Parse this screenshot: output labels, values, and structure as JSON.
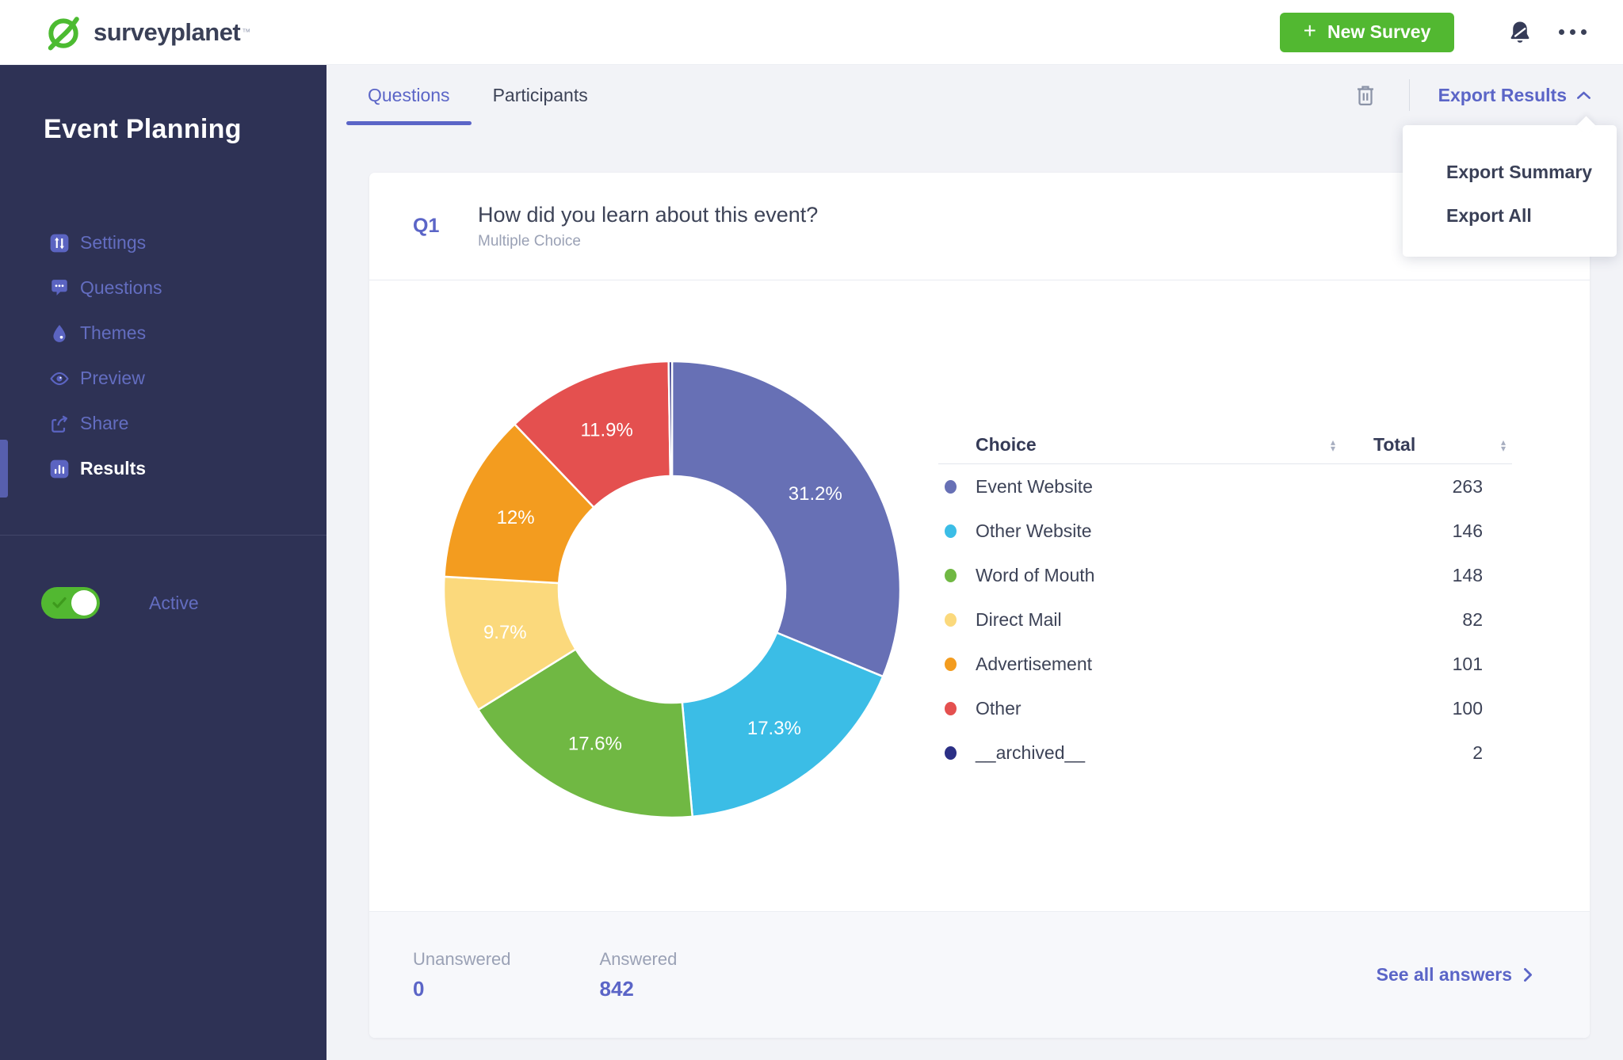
{
  "topbar": {
    "brand": "surveyplanet",
    "trademark": "™",
    "new_survey_label": "New Survey",
    "new_survey_plus": "+"
  },
  "sidebar": {
    "title": "Event Planning",
    "items": [
      {
        "label": "Settings",
        "icon": "sliders-icon",
        "active": false
      },
      {
        "label": "Questions",
        "icon": "chat-icon",
        "active": false
      },
      {
        "label": "Themes",
        "icon": "droplet-icon",
        "active": false
      },
      {
        "label": "Preview",
        "icon": "eye-icon",
        "active": false
      },
      {
        "label": "Share",
        "icon": "share-icon",
        "active": false
      },
      {
        "label": "Results",
        "icon": "bar-chart-icon",
        "active": true
      }
    ],
    "toggle_label": "Active",
    "toggle_on": true
  },
  "tabs": [
    {
      "label": "Questions",
      "active": true
    },
    {
      "label": "Participants",
      "active": false
    }
  ],
  "export": {
    "button_label": "Export Results",
    "menu_items": [
      {
        "label": "Export Summary"
      },
      {
        "label": "Export All"
      }
    ]
  },
  "question": {
    "number": "Q1",
    "title": "How did you learn about this event?",
    "type": "Multiple Choice"
  },
  "chart_data": {
    "type": "pie",
    "donut": true,
    "title": "How did you learn about this event?",
    "categories": [
      "Event Website",
      "Other Website",
      "Word of Mouth",
      "Direct Mail",
      "Advertisement",
      "Other",
      "__archived__"
    ],
    "values": [
      263,
      146,
      148,
      82,
      101,
      100,
      2
    ],
    "percent_labels": [
      "31.2%",
      "17.3%",
      "17.6%",
      "9.7%",
      "12%",
      "11.9%",
      ""
    ],
    "colors": [
      "#6770b5",
      "#3bbde6",
      "#70b843",
      "#fbd97c",
      "#f39c1f",
      "#e4504f",
      "#2b2f85"
    ],
    "start_angle_deg": 0,
    "direction": "clockwise",
    "inner_radius_ratio": 0.497,
    "total": 842,
    "legend_position": "right-table"
  },
  "table": {
    "columns": [
      "Choice",
      "Total"
    ],
    "rows": [
      {
        "label": "Event Website",
        "value": "263",
        "color": "#6770b5"
      },
      {
        "label": "Other Website",
        "value": "146",
        "color": "#3bbde6"
      },
      {
        "label": "Word of Mouth",
        "value": "148",
        "color": "#70b843"
      },
      {
        "label": "Direct Mail",
        "value": "82",
        "color": "#fbd97c"
      },
      {
        "label": "Advertisement",
        "value": "101",
        "color": "#f39c1f"
      },
      {
        "label": "Other",
        "value": "100",
        "color": "#e4504f"
      },
      {
        "label": "__archived__",
        "value": "2",
        "color": "#2b2f85"
      }
    ]
  },
  "footer": {
    "unanswered_label": "Unanswered",
    "unanswered_value": "0",
    "answered_label": "Answered",
    "answered_value": "842",
    "see_all_label": "See all answers"
  },
  "colors": {
    "brand_green": "#52b831",
    "accent_purple": "#5b65c7",
    "sidebar_bg": "#2e3255",
    "sidebar_muted": "#636dc0",
    "text_dark": "#3d4357",
    "text_gray": "#9aa1b5"
  }
}
